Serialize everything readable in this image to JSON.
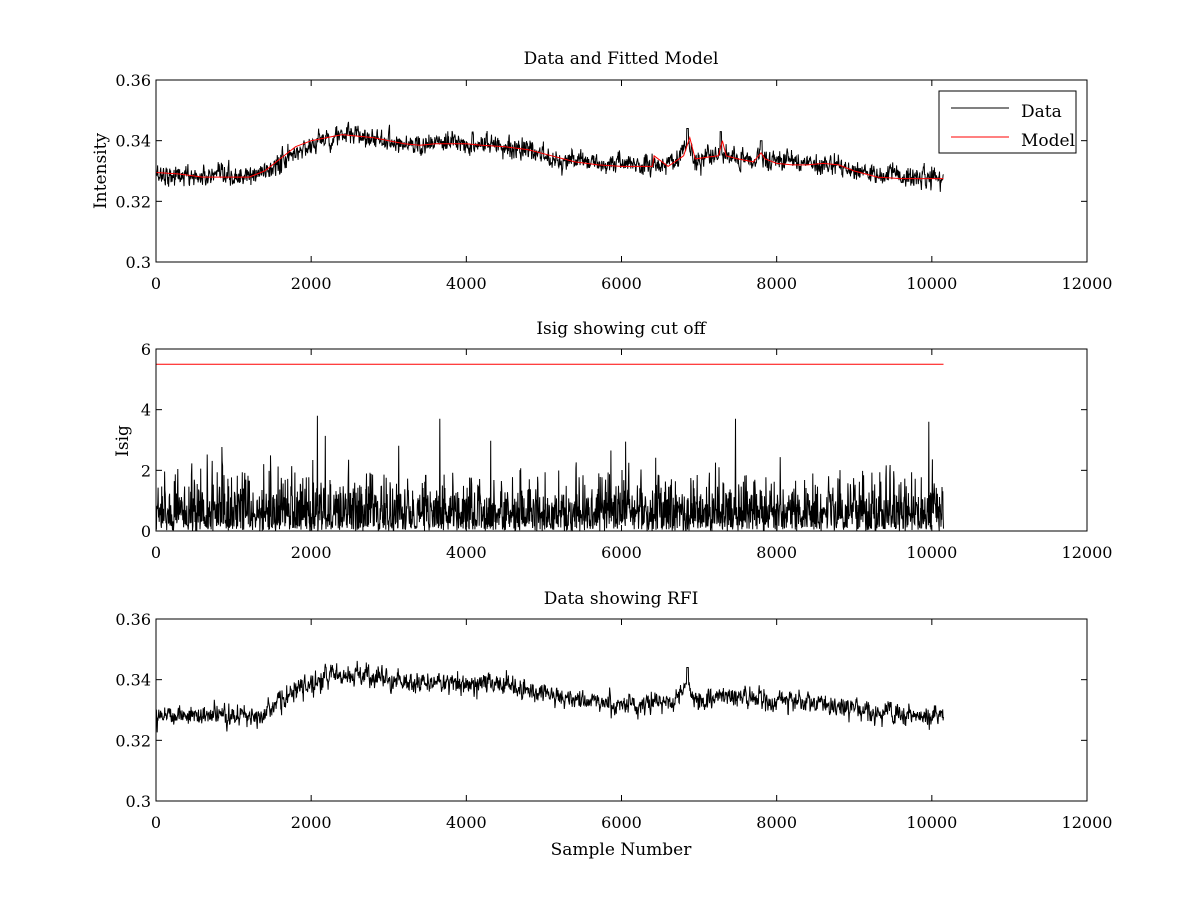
{
  "chart_data": [
    {
      "type": "line",
      "title": "Data and Fitted Model",
      "xlabel": "",
      "ylabel": "Intensity",
      "xlim": [
        0,
        12000
      ],
      "ylim": [
        0.3,
        0.36
      ],
      "xticks": [
        "0",
        "2000",
        "4000",
        "6000",
        "8000",
        "10000",
        "12000"
      ],
      "yticks": [
        "0.3",
        "0.32",
        "0.34",
        "0.36"
      ],
      "grid": false,
      "legend": {
        "placement": "top-right",
        "entries": [
          {
            "label": "Data",
            "color": "#000000"
          },
          {
            "label": "Model",
            "color": "#ff0000"
          }
        ]
      },
      "series": [
        {
          "name": "Data",
          "color": "#000000",
          "style": "noisy",
          "noise_amplitude": 0.0045,
          "x_range": [
            0,
            10150
          ],
          "baseline": {
            "x": [
              0,
              600,
              1200,
              1500,
              1800,
              2100,
              2400,
              2800,
              3200,
              3600,
              3900,
              4300,
              4600,
              5000,
              5500,
              6000,
              6400,
              6700,
              6850,
              6950,
              7100,
              7300,
              7500,
              7800,
              8200,
              8700,
              9000,
              9300,
              9700,
              10150
            ],
            "y": [
              0.329,
              0.328,
              0.328,
              0.331,
              0.336,
              0.34,
              0.342,
              0.341,
              0.339,
              0.339,
              0.339,
              0.339,
              0.338,
              0.335,
              0.333,
              0.332,
              0.332,
              0.333,
              0.339,
              0.333,
              0.334,
              0.335,
              0.334,
              0.334,
              0.333,
              0.332,
              0.33,
              0.329,
              0.328,
              0.328
            ]
          },
          "spikes": [
            {
              "x": 6850,
              "value": 0.344
            },
            {
              "x": 7280,
              "value": 0.343
            },
            {
              "x": 7800,
              "value": 0.34
            }
          ]
        },
        {
          "name": "Model",
          "color": "#ff0000",
          "style": "smooth",
          "x": [
            0,
            300,
            600,
            900,
            1200,
            1400,
            1600,
            1800,
            2000,
            2200,
            2400,
            2600,
            2800,
            3000,
            3200,
            3400,
            3600,
            3800,
            4000,
            4200,
            4500,
            4800,
            5100,
            5400,
            5700,
            6000,
            6300,
            6400,
            6420,
            6600,
            6800,
            6880,
            6950,
            7100,
            7250,
            7300,
            7350,
            7500,
            7700,
            7800,
            7850,
            8000,
            8200,
            8400,
            8600,
            8800,
            9000,
            9300,
            9600,
            10150
          ],
          "y": [
            0.3295,
            0.329,
            0.328,
            0.328,
            0.328,
            0.33,
            0.334,
            0.338,
            0.34,
            0.341,
            0.342,
            0.3415,
            0.341,
            0.34,
            0.339,
            0.3385,
            0.339,
            0.339,
            0.339,
            0.3385,
            0.338,
            0.337,
            0.335,
            0.333,
            0.332,
            0.3315,
            0.3315,
            0.3315,
            0.335,
            0.3315,
            0.335,
            0.341,
            0.334,
            0.3345,
            0.335,
            0.34,
            0.335,
            0.334,
            0.333,
            0.336,
            0.334,
            0.3325,
            0.332,
            0.332,
            0.3325,
            0.332,
            0.33,
            0.328,
            0.3275,
            0.3275
          ]
        }
      ]
    },
    {
      "type": "line",
      "title": "Isig showing cut off",
      "xlabel": "",
      "ylabel": "Isig",
      "xlim": [
        0,
        12000
      ],
      "ylim": [
        0,
        6
      ],
      "xticks": [
        "0",
        "2000",
        "4000",
        "6000",
        "8000",
        "10000",
        "12000"
      ],
      "yticks": [
        "0",
        "2",
        "4",
        "6"
      ],
      "grid": false,
      "series": [
        {
          "name": "Isig",
          "color": "#000000",
          "style": "abs-noise",
          "x_range": [
            0,
            10150
          ],
          "scale": 0.85,
          "max_value": 3.8,
          "peaks": [
            {
              "x": 2080,
              "value": 3.8
            },
            {
              "x": 3660,
              "value": 3.7
            },
            {
              "x": 7470,
              "value": 3.7
            },
            {
              "x": 9960,
              "value": 3.6
            }
          ]
        },
        {
          "name": "Cut off",
          "color": "#ff0000",
          "style": "smooth",
          "x": [
            0,
            10150
          ],
          "y": [
            5.5,
            5.5
          ]
        }
      ]
    },
    {
      "type": "line",
      "title": "Data showing RFI",
      "xlabel": "Sample Number",
      "ylabel": "",
      "xlim": [
        0,
        12000
      ],
      "ylim": [
        0.3,
        0.36
      ],
      "xticks": [
        "0",
        "2000",
        "4000",
        "6000",
        "8000",
        "10000",
        "12000"
      ],
      "yticks": [
        "0.3",
        "0.32",
        "0.34",
        "0.36"
      ],
      "grid": false,
      "series": [
        {
          "name": "Data",
          "color": "#000000",
          "style": "noisy",
          "noise_amplitude": 0.0045,
          "x_range": [
            0,
            10150
          ],
          "baseline": {
            "x": [
              0,
              600,
              1200,
              1500,
              1800,
              2100,
              2400,
              2800,
              3200,
              3600,
              3900,
              4300,
              4600,
              5000,
              5500,
              6000,
              6400,
              6700,
              6850,
              6950,
              7100,
              7300,
              7500,
              7800,
              8200,
              8700,
              9000,
              9300,
              9700,
              10150
            ],
            "y": [
              0.329,
              0.328,
              0.328,
              0.331,
              0.336,
              0.34,
              0.342,
              0.341,
              0.339,
              0.339,
              0.339,
              0.339,
              0.338,
              0.335,
              0.333,
              0.332,
              0.332,
              0.333,
              0.339,
              0.333,
              0.334,
              0.335,
              0.334,
              0.334,
              0.333,
              0.332,
              0.33,
              0.329,
              0.328,
              0.328
            ]
          },
          "spikes": [
            {
              "x": 6850,
              "value": 0.344
            }
          ]
        }
      ]
    }
  ]
}
